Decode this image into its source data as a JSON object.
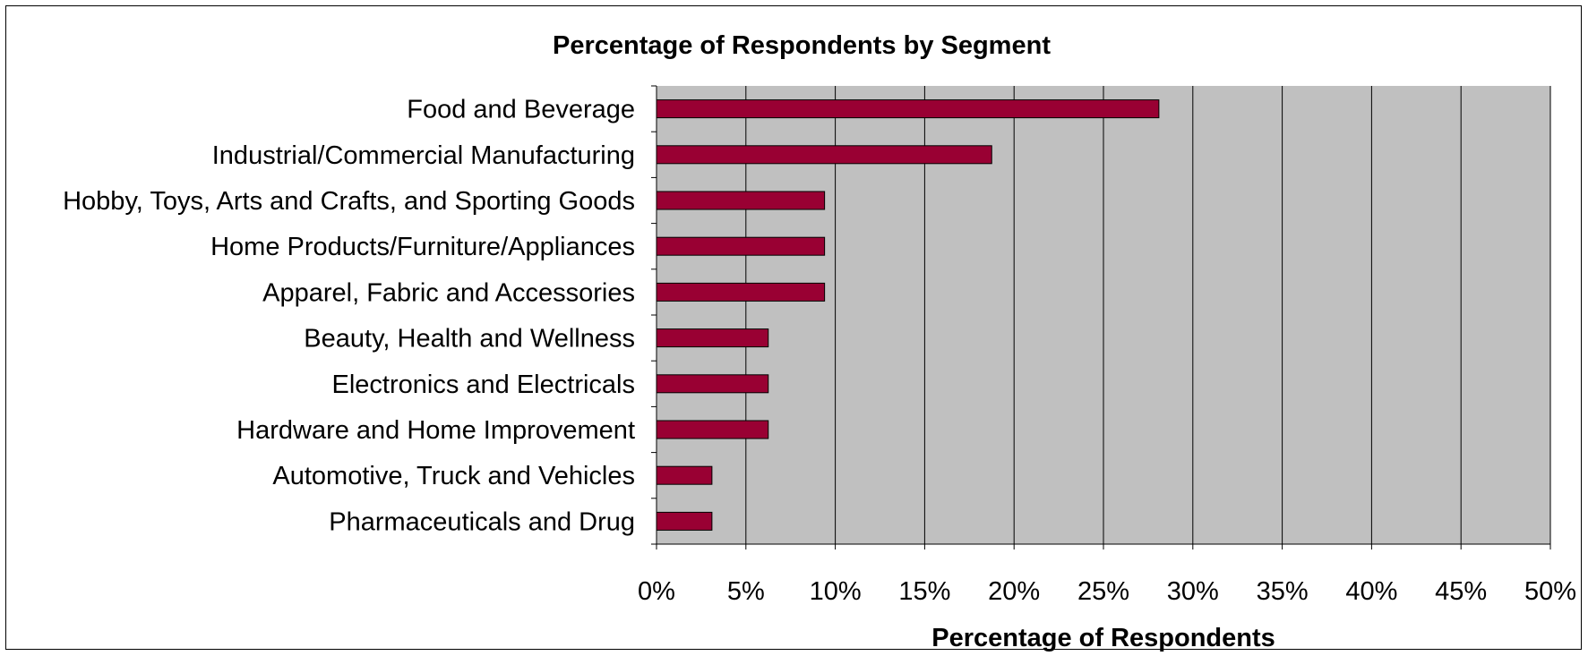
{
  "chart_data": {
    "type": "bar",
    "orientation": "horizontal",
    "title": "Percentage of Respondents by Segment",
    "xlabel": "Percentage of Respondents",
    "ylabel": "",
    "categories": [
      "Food and Beverage",
      "Industrial/Commercial Manufacturing",
      "Hobby, Toys, Arts and Crafts, and Sporting Goods",
      "Home Products/Furniture/Appliances",
      "Apparel, Fabric and Accessories",
      "Beauty, Health and Wellness",
      "Electronics and Electricals",
      "Hardware and Home Improvement",
      "Automotive, Truck and Vehicles",
      "Pharmaceuticals and Drug"
    ],
    "values": [
      28.1,
      18.75,
      9.4,
      9.4,
      9.4,
      6.25,
      6.25,
      6.25,
      3.1,
      3.1
    ],
    "xlim": [
      0,
      50
    ],
    "xticks": [
      "0%",
      "5%",
      "10%",
      "15%",
      "20%",
      "25%",
      "30%",
      "35%",
      "40%",
      "45%",
      "50%"
    ],
    "grid": true,
    "legend": "none",
    "colors": {
      "bar": "#990033",
      "plot_background": "#c0c0c0",
      "gridline": "#000000"
    }
  }
}
